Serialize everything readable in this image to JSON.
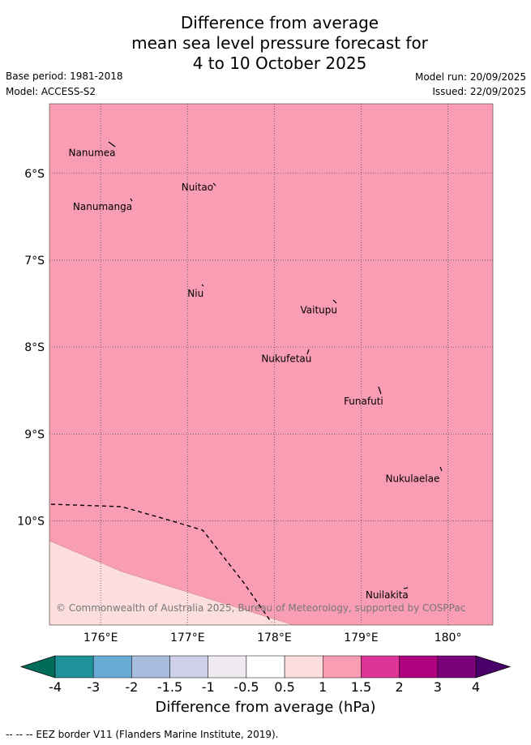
{
  "header": {
    "title_lines": [
      "Difference from average",
      "mean sea level pressure forecast for",
      "4 to 10 October 2025"
    ],
    "base_period": "Base period: 1981-2018",
    "model": "Model: ACCESS-S2",
    "model_run": "Model run: 20/09/2025",
    "issued": "Issued: 22/09/2025"
  },
  "map": {
    "lon_ticks": [
      {
        "value": 176,
        "label": "176°E"
      },
      {
        "value": 177,
        "label": "177°E"
      },
      {
        "value": 178,
        "label": "178°E"
      },
      {
        "value": 179,
        "label": "179°E"
      },
      {
        "value": 180,
        "label": "180°"
      }
    ],
    "lat_ticks": [
      {
        "value": -6,
        "label": "6°S"
      },
      {
        "value": -7,
        "label": "7°S"
      },
      {
        "value": -8,
        "label": "8°S"
      },
      {
        "value": -9,
        "label": "9°S"
      },
      {
        "value": -10,
        "label": "10°S"
      }
    ],
    "background_color": "#f99db5",
    "lower_zone_color": "#fddede",
    "places": [
      {
        "name": "Nanumea",
        "lon": 175.63,
        "lat": -5.8
      },
      {
        "name": "Nuitao",
        "lon": 176.93,
        "lat": -6.2
      },
      {
        "name": "Nanumanga",
        "lon": 175.68,
        "lat": -6.42
      },
      {
        "name": "Niu",
        "lon": 177.0,
        "lat": -7.42
      },
      {
        "name": "Vaitupu",
        "lon": 178.3,
        "lat": -7.61
      },
      {
        "name": "Nukufetau",
        "lon": 177.85,
        "lat": -8.17
      },
      {
        "name": "Funafuti",
        "lon": 178.8,
        "lat": -8.66
      },
      {
        "name": "Nukulaelae",
        "lon": 179.28,
        "lat": -9.55
      },
      {
        "name": "Nuilakita",
        "lon": 179.05,
        "lat": -10.89
      }
    ],
    "copyright": "© Commonwealth of Australia 2025, Bureau of Meteorology, supported by COSPPac"
  },
  "colorbar": {
    "tick_labels": [
      "-4",
      "-3",
      "-2",
      "-1.5",
      "-1",
      "-0.5",
      "0.5",
      "1",
      "1.5",
      "2",
      "3",
      "4"
    ],
    "colors": [
      "#1f9198",
      "#68aad3",
      "#a8bcdd",
      "#cdd0e6",
      "#eeeaf0",
      "#ffffff",
      "#fddede",
      "#f99db5",
      "#dd3497",
      "#ae017e",
      "#7a0177"
    ],
    "under_color": "#016c59",
    "over_color": "#49006a",
    "label": "Difference from average (hPa)"
  },
  "footnote": "-- -- -- EEZ border V11 (Flanders Marine Institute, 2019)."
}
